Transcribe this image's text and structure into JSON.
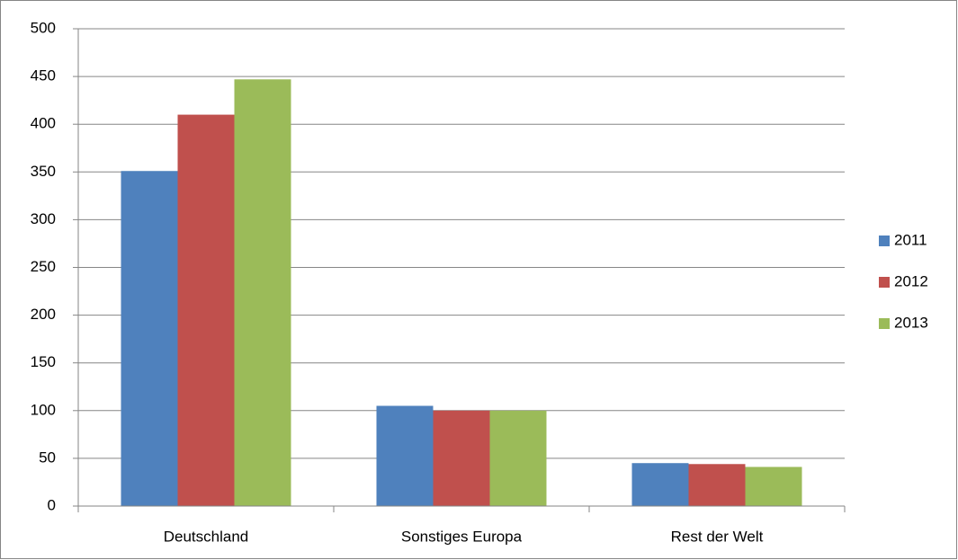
{
  "chart_data": {
    "type": "bar",
    "categories": [
      "Deutschland",
      "Sonstiges Europa",
      "Rest der Welt"
    ],
    "series": [
      {
        "name": "2011",
        "color": "#4f81bd",
        "values": [
          351,
          105,
          45
        ]
      },
      {
        "name": "2012",
        "color": "#c0504d",
        "values": [
          410,
          100,
          44
        ]
      },
      {
        "name": "2013",
        "color": "#9bbb59",
        "values": [
          447,
          100,
          41
        ]
      }
    ],
    "ylim": [
      0,
      500
    ],
    "yticks": [
      0,
      50,
      100,
      150,
      200,
      250,
      300,
      350,
      400,
      450,
      500
    ],
    "grid": true,
    "legend": "right"
  }
}
